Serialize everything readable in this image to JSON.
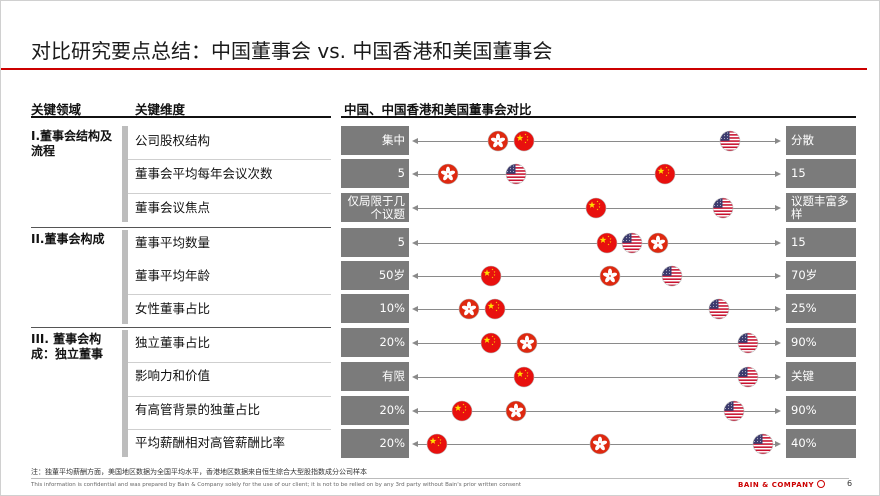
{
  "title": "对比研究要点总结：中国董事会 vs. 中国香港和美国董事会",
  "headers": {
    "area": "关键领域",
    "dimension": "关键维度",
    "comparison": "中国、中国香港和美国董事会对比"
  },
  "areas": [
    {
      "label": "I.董事会结构及流程"
    },
    {
      "label": "II.董事会构成"
    },
    {
      "label": "III. 董事会构成：独立董事"
    }
  ],
  "rows": [
    {
      "dimension": "公司股权结构",
      "left": "集中",
      "right": "分散",
      "cn": 0.3,
      "hk": 0.23,
      "us": 0.87
    },
    {
      "dimension": "董事会平均每年会议次数",
      "left": "5",
      "right": "15",
      "cn": 0.69,
      "hk": 0.09,
      "us": 0.28
    },
    {
      "dimension": "董事会议焦点",
      "left": "仅局限于几个议题",
      "right": "议题丰富多样",
      "cn": 0.5,
      "hk": null,
      "us": 0.85
    },
    {
      "dimension": "董事平均数量",
      "left": "5",
      "right": "15",
      "cn": 0.53,
      "hk": 0.67,
      "us": 0.6
    },
    {
      "dimension": "董事平均年龄",
      "left": "50岁",
      "right": "70岁",
      "cn": 0.21,
      "hk": 0.54,
      "us": 0.71
    },
    {
      "dimension": "女性董事占比",
      "left": "10%",
      "right": "25%",
      "cn": 0.22,
      "hk": 0.15,
      "us": 0.84
    },
    {
      "dimension": "独立董事占比",
      "left": "20%",
      "right": "90%",
      "cn": 0.21,
      "hk": 0.31,
      "us": 0.92
    },
    {
      "dimension": "影响力和价值",
      "left": "有限",
      "right": "关键",
      "cn": 0.3,
      "hk": null,
      "us": 0.92
    },
    {
      "dimension": "有高管背景的独董占比",
      "left": "20%",
      "right": "90%",
      "cn": 0.13,
      "hk": 0.28,
      "us": 0.88
    },
    {
      "dimension": "平均薪酬相对高管薪酬比率",
      "left": "20%",
      "right": "40%",
      "cn": 0.06,
      "hk": 0.51,
      "us": 0.96
    }
  ],
  "note": "注：独董平均薪酬方面，美国地区数据为全国平均水平，香港地区数据来自恒生综合大型股指数成分公司样本",
  "footer": "This information is confidential and was prepared by Bain & Company solely for the use of our client; it is not to be relied on by any 3rd party without Bain's prior written consent",
  "logo": "BAIN & COMPANY",
  "page_number": "6",
  "colors": {
    "accent": "#cc0000",
    "box": "#7b7b7b",
    "cn_red": "#e8100e",
    "hk_red": "#de2910",
    "us_blue": "#3c3b6e"
  }
}
